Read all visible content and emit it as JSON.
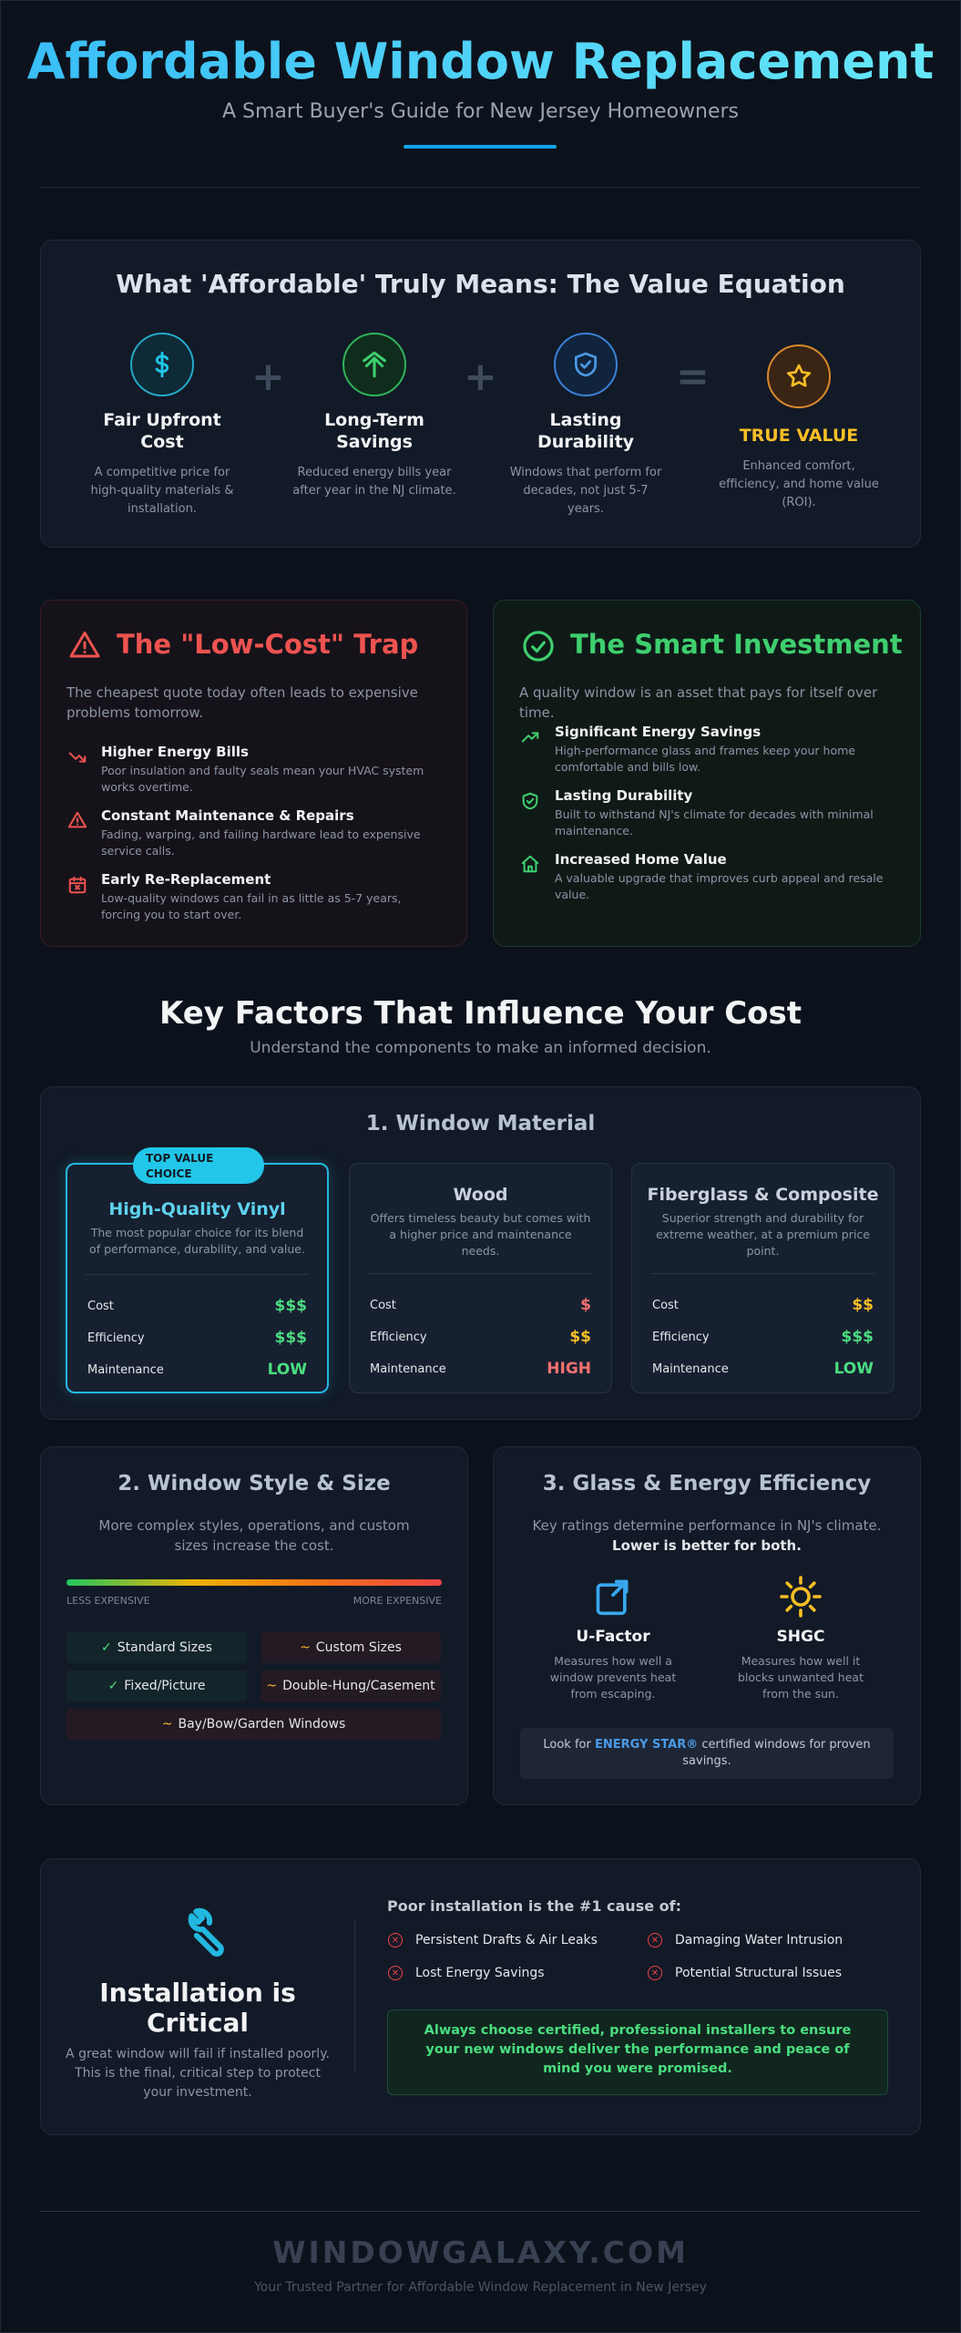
{
  "header": {
    "title": "Affordable Window Replacement",
    "subtitle": "A Smart Buyer's Guide for New Jersey Homeowners"
  },
  "value_equation": {
    "title": "What 'Affordable' Truly Means: The Value Equation",
    "items": [
      {
        "name": "Fair Upfront Cost",
        "desc": "A competitive price for high-quality materials & installation.",
        "icon": "dollar-icon"
      },
      {
        "name": "Long-Term Savings",
        "desc": "Reduced energy bills year after year in the NJ climate.",
        "icon": "leaf-icon"
      },
      {
        "name": "Lasting Durability",
        "desc": "Windows that perform for decades, not just 5-7 years.",
        "icon": "shield-check-icon"
      }
    ],
    "operators": [
      "+",
      "+",
      "="
    ],
    "result": {
      "name": "TRUE VALUE",
      "desc": "Enhanced comfort, efficiency, and home value (ROI).",
      "icon": "star-icon"
    }
  },
  "trap": {
    "title": "The \"Low-Cost\" Trap",
    "intro": "The cheapest quote today often leads to expensive problems tomorrow.",
    "items": [
      {
        "name": "Higher Energy Bills",
        "desc": "Poor insulation and faulty seals mean your HVAC system works overtime.",
        "icon": "trending-down-icon"
      },
      {
        "name": "Constant Maintenance & Repairs",
        "desc": "Fading, warping, and failing hardware lead to expensive service calls.",
        "icon": "warning-icon"
      },
      {
        "name": "Early Re-Replacement",
        "desc": "Low-quality windows can fail in as little as 5-7 years, forcing you to start over.",
        "icon": "calendar-x-icon"
      }
    ]
  },
  "smart": {
    "title": "The Smart Investment",
    "intro": "A quality window is an asset that pays for itself over time.",
    "items": [
      {
        "name": "Significant Energy Savings",
        "desc": "High-performance glass and frames keep your home comfortable and bills low.",
        "icon": "trending-up-icon"
      },
      {
        "name": "Lasting Durability",
        "desc": "Built to withstand NJ's climate for decades with minimal maintenance.",
        "icon": "shield-check-icon"
      },
      {
        "name": "Increased Home Value",
        "desc": "A valuable upgrade that improves curb appeal and resale value.",
        "icon": "home-icon"
      }
    ]
  },
  "key_factors": {
    "title": "Key Factors That Influence Your Cost",
    "subtitle": "Understand the components to make an informed decision."
  },
  "material": {
    "title": "1. Window Material",
    "badge": "TOP VALUE CHOICE",
    "row_labels": [
      "Cost",
      "Efficiency",
      "Maintenance"
    ],
    "options": [
      {
        "name": "High-Quality Vinyl",
        "desc": "The most popular choice for its blend of performance, durability, and value.",
        "values": [
          "$$$",
          "$$$",
          "LOW"
        ],
        "colors": [
          "#4ade80",
          "#4ade80",
          "#4ade80"
        ]
      },
      {
        "name": "Wood",
        "desc": "Offers timeless beauty but comes with a higher price and maintenance needs.",
        "values": [
          "$",
          "$$",
          "HIGH"
        ],
        "colors": [
          "#f87171",
          "#fbbf24",
          "#f87171"
        ]
      },
      {
        "name": "Fiberglass & Composite",
        "desc": "Superior strength and durability for extreme weather, at a premium price point.",
        "values": [
          "$$",
          "$$$",
          "LOW"
        ],
        "colors": [
          "#fbbf24",
          "#4ade80",
          "#4ade80"
        ]
      }
    ]
  },
  "style": {
    "title": "2. Window Style & Size",
    "desc": "More complex styles, operations, and custom sizes increase the cost.",
    "scale_low": "LESS EXPENSIVE",
    "scale_high": "MORE EXPENSIVE",
    "tags": [
      {
        "mark": "✓",
        "label": "Standard Sizes"
      },
      {
        "mark": "~",
        "label": "Custom Sizes"
      },
      {
        "mark": "✓",
        "label": "Fixed/Picture"
      },
      {
        "mark": "~",
        "label": "Double-Hung/Casement"
      },
      {
        "mark": "~",
        "label": "Bay/Bow/Garden Windows"
      }
    ]
  },
  "glass": {
    "title": "3. Glass & Energy Efficiency",
    "desc": "Key ratings determine performance in NJ's climate.",
    "desc_strong": "Lower is better for both.",
    "items": [
      {
        "name": "U-Factor",
        "desc": "Measures how well a window prevents heat from escaping.",
        "icon": "heat-escape-icon"
      },
      {
        "name": "SHGC",
        "desc": "Measures how well it blocks unwanted heat from the sun.",
        "icon": "sun-icon"
      }
    ],
    "energy_prefix": "Look for",
    "energy_star": "ENERGY STAR®",
    "energy_suffix": "certified windows for proven savings."
  },
  "installation": {
    "title": "Installation is Critical",
    "desc": "A great window will fail if installed poorly. This is the final, critical step to protect your investment.",
    "heading": "Poor installation is the #1 cause of:",
    "causes": [
      "Persistent Drafts & Air Leaks",
      "Damaging Water Intrusion",
      "Lost Energy Savings",
      "Potential Structural Issues"
    ],
    "callout": "Always choose certified, professional installers to ensure your new windows deliver the performance and peace of mind you were promised."
  },
  "footer": {
    "brand": "WINDOWGALAXY.COM",
    "tagline": "Your Trusted Partner for Affordable Window Replacement in New Jersey"
  },
  "colors": {
    "accent": "#38bdf8",
    "trap": "#ef5350",
    "smart": "#3ecf6e",
    "true_value": "#fbbf24"
  }
}
